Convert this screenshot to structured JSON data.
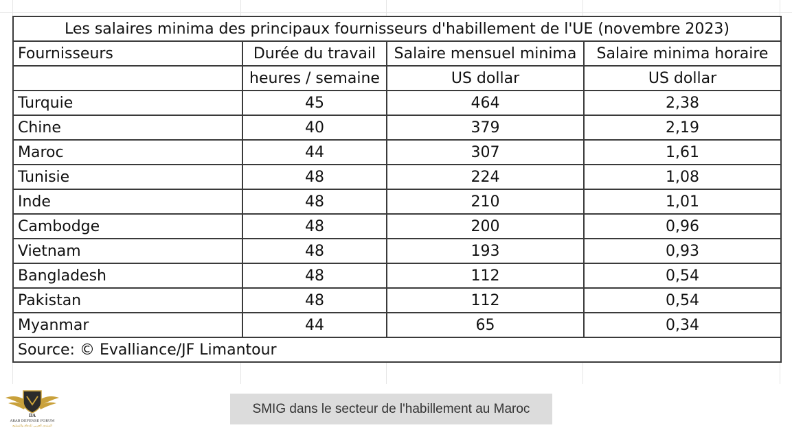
{
  "table": {
    "title": "Les salaires minima des principaux fournisseurs d'habillement de l'UE (novembre 2023)",
    "headers": {
      "col1": "Fournisseurs",
      "col2": "Durée du travail",
      "col3": "Salaire mensuel minima",
      "col4": "Salaire minima horaire"
    },
    "units": {
      "col1": "",
      "col2": "heures / semaine",
      "col3": "US dollar",
      "col4": "US dollar"
    },
    "rows": [
      {
        "country": "Turquie",
        "hours": "45",
        "monthly": "464",
        "hourly": "2,38"
      },
      {
        "country": "Chine",
        "hours": "40",
        "monthly": "379",
        "hourly": "2,19"
      },
      {
        "country": "Maroc",
        "hours": "44",
        "monthly": "307",
        "hourly": "1,61"
      },
      {
        "country": "Tunisie",
        "hours": "48",
        "monthly": "224",
        "hourly": "1,08"
      },
      {
        "country": "Inde",
        "hours": "48",
        "monthly": "210",
        "hourly": "1,01"
      },
      {
        "country": "Cambodge",
        "hours": "48",
        "monthly": "200",
        "hourly": "0,96"
      },
      {
        "country": "Vietnam",
        "hours": "48",
        "monthly": "193",
        "hourly": "0,93"
      },
      {
        "country": "Bangladesh",
        "hours": "48",
        "monthly": "112",
        "hourly": "0,54"
      },
      {
        "country": "Pakistan",
        "hours": "48",
        "monthly": "112",
        "hourly": "0,54"
      },
      {
        "country": "Myanmar",
        "hours": "44",
        "monthly": "65",
        "hourly": "0,34"
      }
    ],
    "source": "Source: © Evalliance/JF Limantour"
  },
  "caption": "SMIG dans le secteur de l'habillement au Maroc",
  "logo": {
    "icon": "winged-shield-logo-icon",
    "initials": "DA",
    "line1": "ARAB DEFENSE FORUM",
    "line2": "المنتدى العربي للدفاع والتسليح",
    "colors": {
      "gold": "#c9a13b",
      "dark": "#2b2b2b"
    }
  }
}
